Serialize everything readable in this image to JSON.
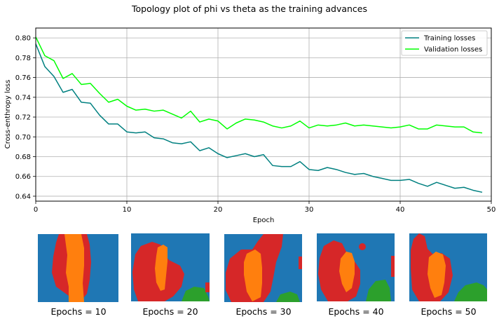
{
  "figure": {
    "title": "Topology plot of phi vs theta as the training advances"
  },
  "chart_data": {
    "type": "line",
    "xlabel": "Epoch",
    "ylabel": "Cross-enthropy loss",
    "xlim": [
      0,
      50
    ],
    "ylim": [
      0.635,
      0.81
    ],
    "xticks": [
      0,
      10,
      20,
      30,
      40,
      50
    ],
    "yticks": [
      0.64,
      0.66,
      0.68,
      0.7,
      0.72,
      0.74,
      0.76,
      0.78,
      0.8
    ],
    "ytick_labels": [
      "0.64",
      "0.66",
      "0.68",
      "0.70",
      "0.72",
      "0.74",
      "0.76",
      "0.78",
      "0.80"
    ],
    "grid": true,
    "legend_position": "top-right",
    "x": [
      0,
      1,
      2,
      3,
      4,
      5,
      6,
      7,
      8,
      9,
      10,
      11,
      12,
      13,
      14,
      15,
      16,
      17,
      18,
      19,
      20,
      21,
      22,
      23,
      24,
      25,
      26,
      27,
      28,
      29,
      30,
      31,
      32,
      33,
      34,
      35,
      36,
      37,
      38,
      39,
      40,
      41,
      42,
      43,
      44,
      45,
      46,
      47,
      48,
      49
    ],
    "series": [
      {
        "name": "Training losses",
        "color": "#008080",
        "values": [
          0.794,
          0.771,
          0.761,
          0.745,
          0.748,
          0.735,
          0.734,
          0.722,
          0.713,
          0.713,
          0.705,
          0.704,
          0.705,
          0.699,
          0.698,
          0.694,
          0.693,
          0.695,
          0.686,
          0.689,
          0.683,
          0.679,
          0.681,
          0.683,
          0.68,
          0.682,
          0.671,
          0.67,
          0.67,
          0.675,
          0.667,
          0.666,
          0.669,
          0.667,
          0.664,
          0.662,
          0.663,
          0.66,
          0.658,
          0.656,
          0.656,
          0.657,
          0.653,
          0.65,
          0.654,
          0.651,
          0.648,
          0.649,
          0.646,
          0.644
        ]
      },
      {
        "name": "Validation losses",
        "color": "#00ff00",
        "values": [
          0.801,
          0.782,
          0.777,
          0.759,
          0.764,
          0.753,
          0.754,
          0.744,
          0.735,
          0.738,
          0.731,
          0.727,
          0.728,
          0.726,
          0.727,
          0.723,
          0.719,
          0.726,
          0.715,
          0.718,
          0.716,
          0.708,
          0.714,
          0.718,
          0.717,
          0.715,
          0.711,
          0.709,
          0.711,
          0.716,
          0.709,
          0.712,
          0.711,
          0.712,
          0.714,
          0.711,
          0.712,
          0.711,
          0.71,
          0.709,
          0.71,
          0.712,
          0.708,
          0.708,
          0.712,
          0.711,
          0.71,
          0.71,
          0.705,
          0.704
        ]
      }
    ]
  },
  "thumbnails": [
    {
      "label": "Epochs = 10"
    },
    {
      "label": "Epochs = 20"
    },
    {
      "label": "Epochs = 30"
    },
    {
      "label": "Epochs = 40"
    },
    {
      "label": "Epochs = 50"
    }
  ],
  "colors": {
    "blue": "#1f77b4",
    "orange": "#ff7f0e",
    "red": "#d62728",
    "green": "#2ca02c"
  }
}
